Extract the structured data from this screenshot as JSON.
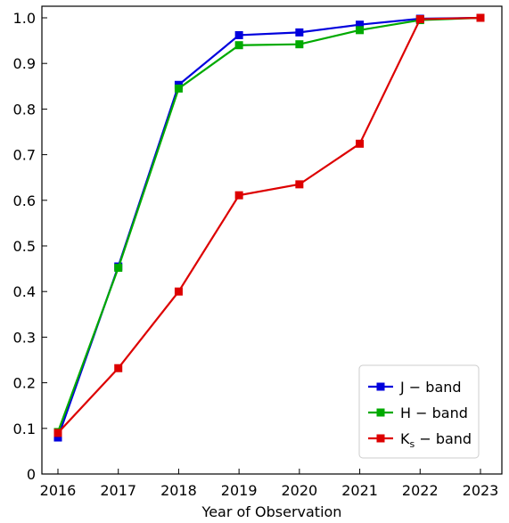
{
  "chart_data": {
    "type": "line",
    "title": "",
    "xlabel": "Year of Observation",
    "ylabel": "",
    "x": [
      2016,
      2017,
      2018,
      2019,
      2020,
      2021,
      2022,
      2023
    ],
    "xlim": [
      2016,
      2023
    ],
    "ylim": [
      0,
      1.0
    ],
    "xticks": [
      "2016",
      "2017",
      "2018",
      "2019",
      "2020",
      "2021",
      "2022",
      "2023"
    ],
    "yticks": [
      "0",
      "0.1",
      "0.2",
      "0.3",
      "0.4",
      "0.5",
      "0.6",
      "0.7",
      "0.8",
      "0.9",
      "1.0"
    ],
    "grid": false,
    "legend_position": "bottom-right",
    "series": [
      {
        "name": "J − band",
        "color": "#0000dd",
        "values": [
          0.08,
          0.455,
          0.853,
          0.962,
          0.968,
          0.985,
          0.998,
          1.0
        ]
      },
      {
        "name": "H − band",
        "color": "#00aa00",
        "values": [
          0.092,
          0.452,
          0.845,
          0.94,
          0.942,
          0.973,
          0.995,
          1.0
        ]
      },
      {
        "name": "Ks − band",
        "name_main": "K",
        "name_sub": "s",
        "name_rest": " − band",
        "color": "#dd0000",
        "values": [
          0.09,
          0.232,
          0.4,
          0.611,
          0.635,
          0.724,
          0.997,
          1.0
        ]
      }
    ]
  }
}
